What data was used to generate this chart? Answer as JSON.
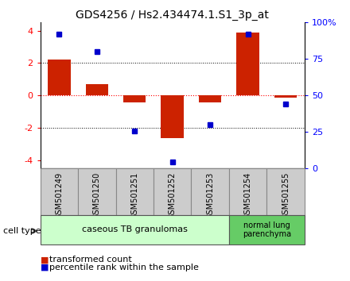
{
  "title": "GDS4256 / Hs2.434474.1.S1_3p_at",
  "samples": [
    "GSM501249",
    "GSM501250",
    "GSM501251",
    "GSM501252",
    "GSM501253",
    "GSM501254",
    "GSM501255"
  ],
  "transformed_counts": [
    2.2,
    0.7,
    -0.4,
    -2.6,
    -0.4,
    3.9,
    -0.15
  ],
  "percentile_y": [
    3.8,
    2.7,
    -2.2,
    -4.1,
    -1.8,
    3.8,
    -0.5
  ],
  "bar_color": "#cc2200",
  "dot_color": "#0000cc",
  "ylim": [
    -4.5,
    4.5
  ],
  "yticks_left": [
    -4,
    -2,
    0,
    2,
    4
  ],
  "right_ytick_pcts": [
    0,
    25,
    50,
    75,
    100
  ],
  "right_ylabels": [
    "0",
    "25",
    "50",
    "75",
    "100%"
  ],
  "group1_count": 5,
  "group2_count": 2,
  "group1_label": "caseous TB granulomas",
  "group2_label": "normal lung\nparenchyma",
  "group1_color": "#ccffcc",
  "group2_color": "#66cc66",
  "sample_box_color": "#cccccc",
  "sample_box_edge": "#888888",
  "cell_type_label": "cell type",
  "legend_bar_label": "transformed count",
  "legend_dot_label": "percentile rank within the sample",
  "bar_width": 0.6,
  "title_fontsize": 10,
  "tick_fontsize": 8,
  "label_fontsize": 8
}
